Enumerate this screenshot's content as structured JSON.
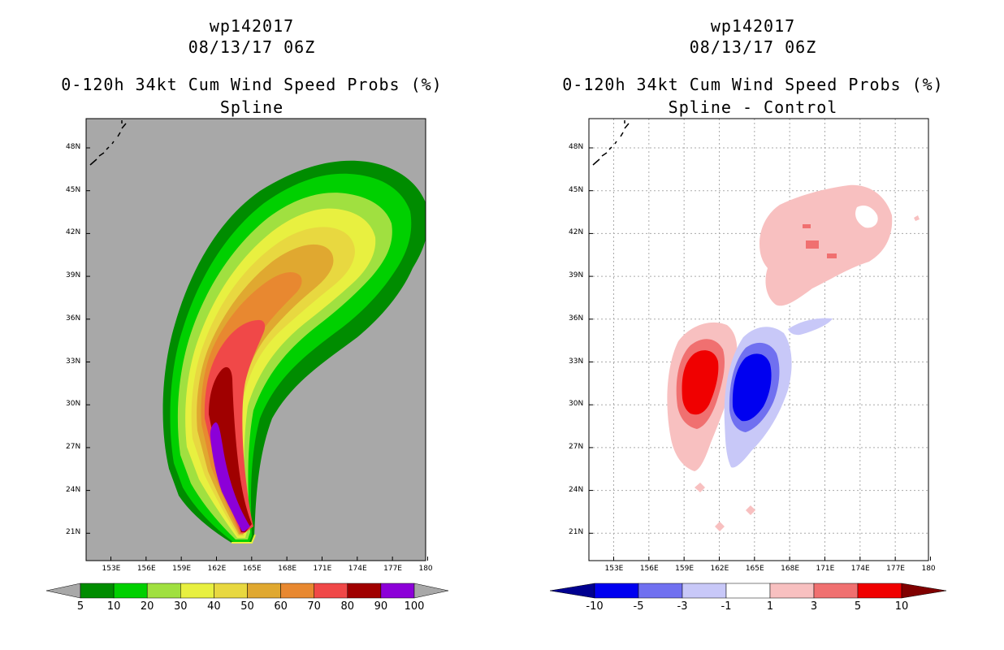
{
  "chart_data": [
    {
      "type": "heatmap",
      "storm_id": "wp142017",
      "datetime": "08/13/17 06Z",
      "title": "0-120h 34kt Cum Wind Speed Probs (%)",
      "subtitle": "Spline",
      "x_ticks": [
        "153E",
        "156E",
        "159E",
        "162E",
        "165E",
        "168E",
        "171E",
        "174E",
        "177E",
        "180"
      ],
      "y_ticks": [
        "48N",
        "45N",
        "42N",
        "39N",
        "36N",
        "33N",
        "30N",
        "27N",
        "24N",
        "21N"
      ],
      "xlim_deg_east": [
        151,
        180
      ],
      "ylim_deg_north": [
        19,
        50
      ],
      "grid": false,
      "background_color": "#a8a8a8",
      "colorbar": {
        "levels": [
          "5",
          "10",
          "20",
          "30",
          "40",
          "50",
          "60",
          "70",
          "80",
          "90",
          "100"
        ],
        "colors": [
          "#008c00",
          "#00d000",
          "#a0e040",
          "#e8f040",
          "#e8d840",
          "#e0a830",
          "#e88830",
          "#f04848",
          "#a00000",
          "#8c00d8"
        ]
      },
      "contours": [
        {
          "level": 5,
          "color": "#008c00"
        },
        {
          "level": 10,
          "color": "#00d000"
        },
        {
          "level": 20,
          "color": "#a0e040"
        },
        {
          "level": 30,
          "color": "#e8f040"
        },
        {
          "level": 40,
          "color": "#e8d840"
        },
        {
          "level": 50,
          "color": "#e0a830"
        },
        {
          "level": 60,
          "color": "#e88830"
        },
        {
          "level": 70,
          "color": "#f04848"
        },
        {
          "level": 80,
          "color": "#a00000"
        },
        {
          "level": 90,
          "color": "#8c00d8"
        }
      ]
    },
    {
      "type": "heatmap",
      "storm_id": "wp142017",
      "datetime": "08/13/17 06Z",
      "title": "0-120h 34kt Cum Wind Speed Probs (%)",
      "subtitle": "Spline - Control",
      "x_ticks": [
        "153E",
        "156E",
        "159E",
        "162E",
        "165E",
        "168E",
        "171E",
        "174E",
        "177E",
        "180"
      ],
      "y_ticks": [
        "48N",
        "45N",
        "42N",
        "39N",
        "36N",
        "33N",
        "30N",
        "27N",
        "24N",
        "21N"
      ],
      "xlim_deg_east": [
        151,
        180
      ],
      "ylim_deg_north": [
        19,
        50
      ],
      "grid": true,
      "background_color": "#ffffff",
      "colorbar": {
        "levels": [
          "-10",
          "-5",
          "-3",
          "-1",
          "1",
          "3",
          "5",
          "10"
        ],
        "colors": [
          "#000090",
          "#0000f0",
          "#7070f0",
          "#c8c8f8",
          "#ffffff",
          "#f8c0c0",
          "#f07070",
          "#f00000",
          "#800000"
        ]
      },
      "features": [
        {
          "name": "positive-max",
          "value_range": "5 to 10",
          "center_lon": 161.0,
          "center_lat": 31.5,
          "color": "#f00000"
        },
        {
          "name": "negative-max",
          "value_range": "-10 to -5",
          "center_lon": 165.5,
          "center_lat": 30.5,
          "color": "#0000f0"
        },
        {
          "name": "positive-north",
          "value_range": "1 to 3",
          "center_lon": 171.5,
          "center_lat": 41.5,
          "color": "#f8c0c0"
        }
      ]
    }
  ]
}
